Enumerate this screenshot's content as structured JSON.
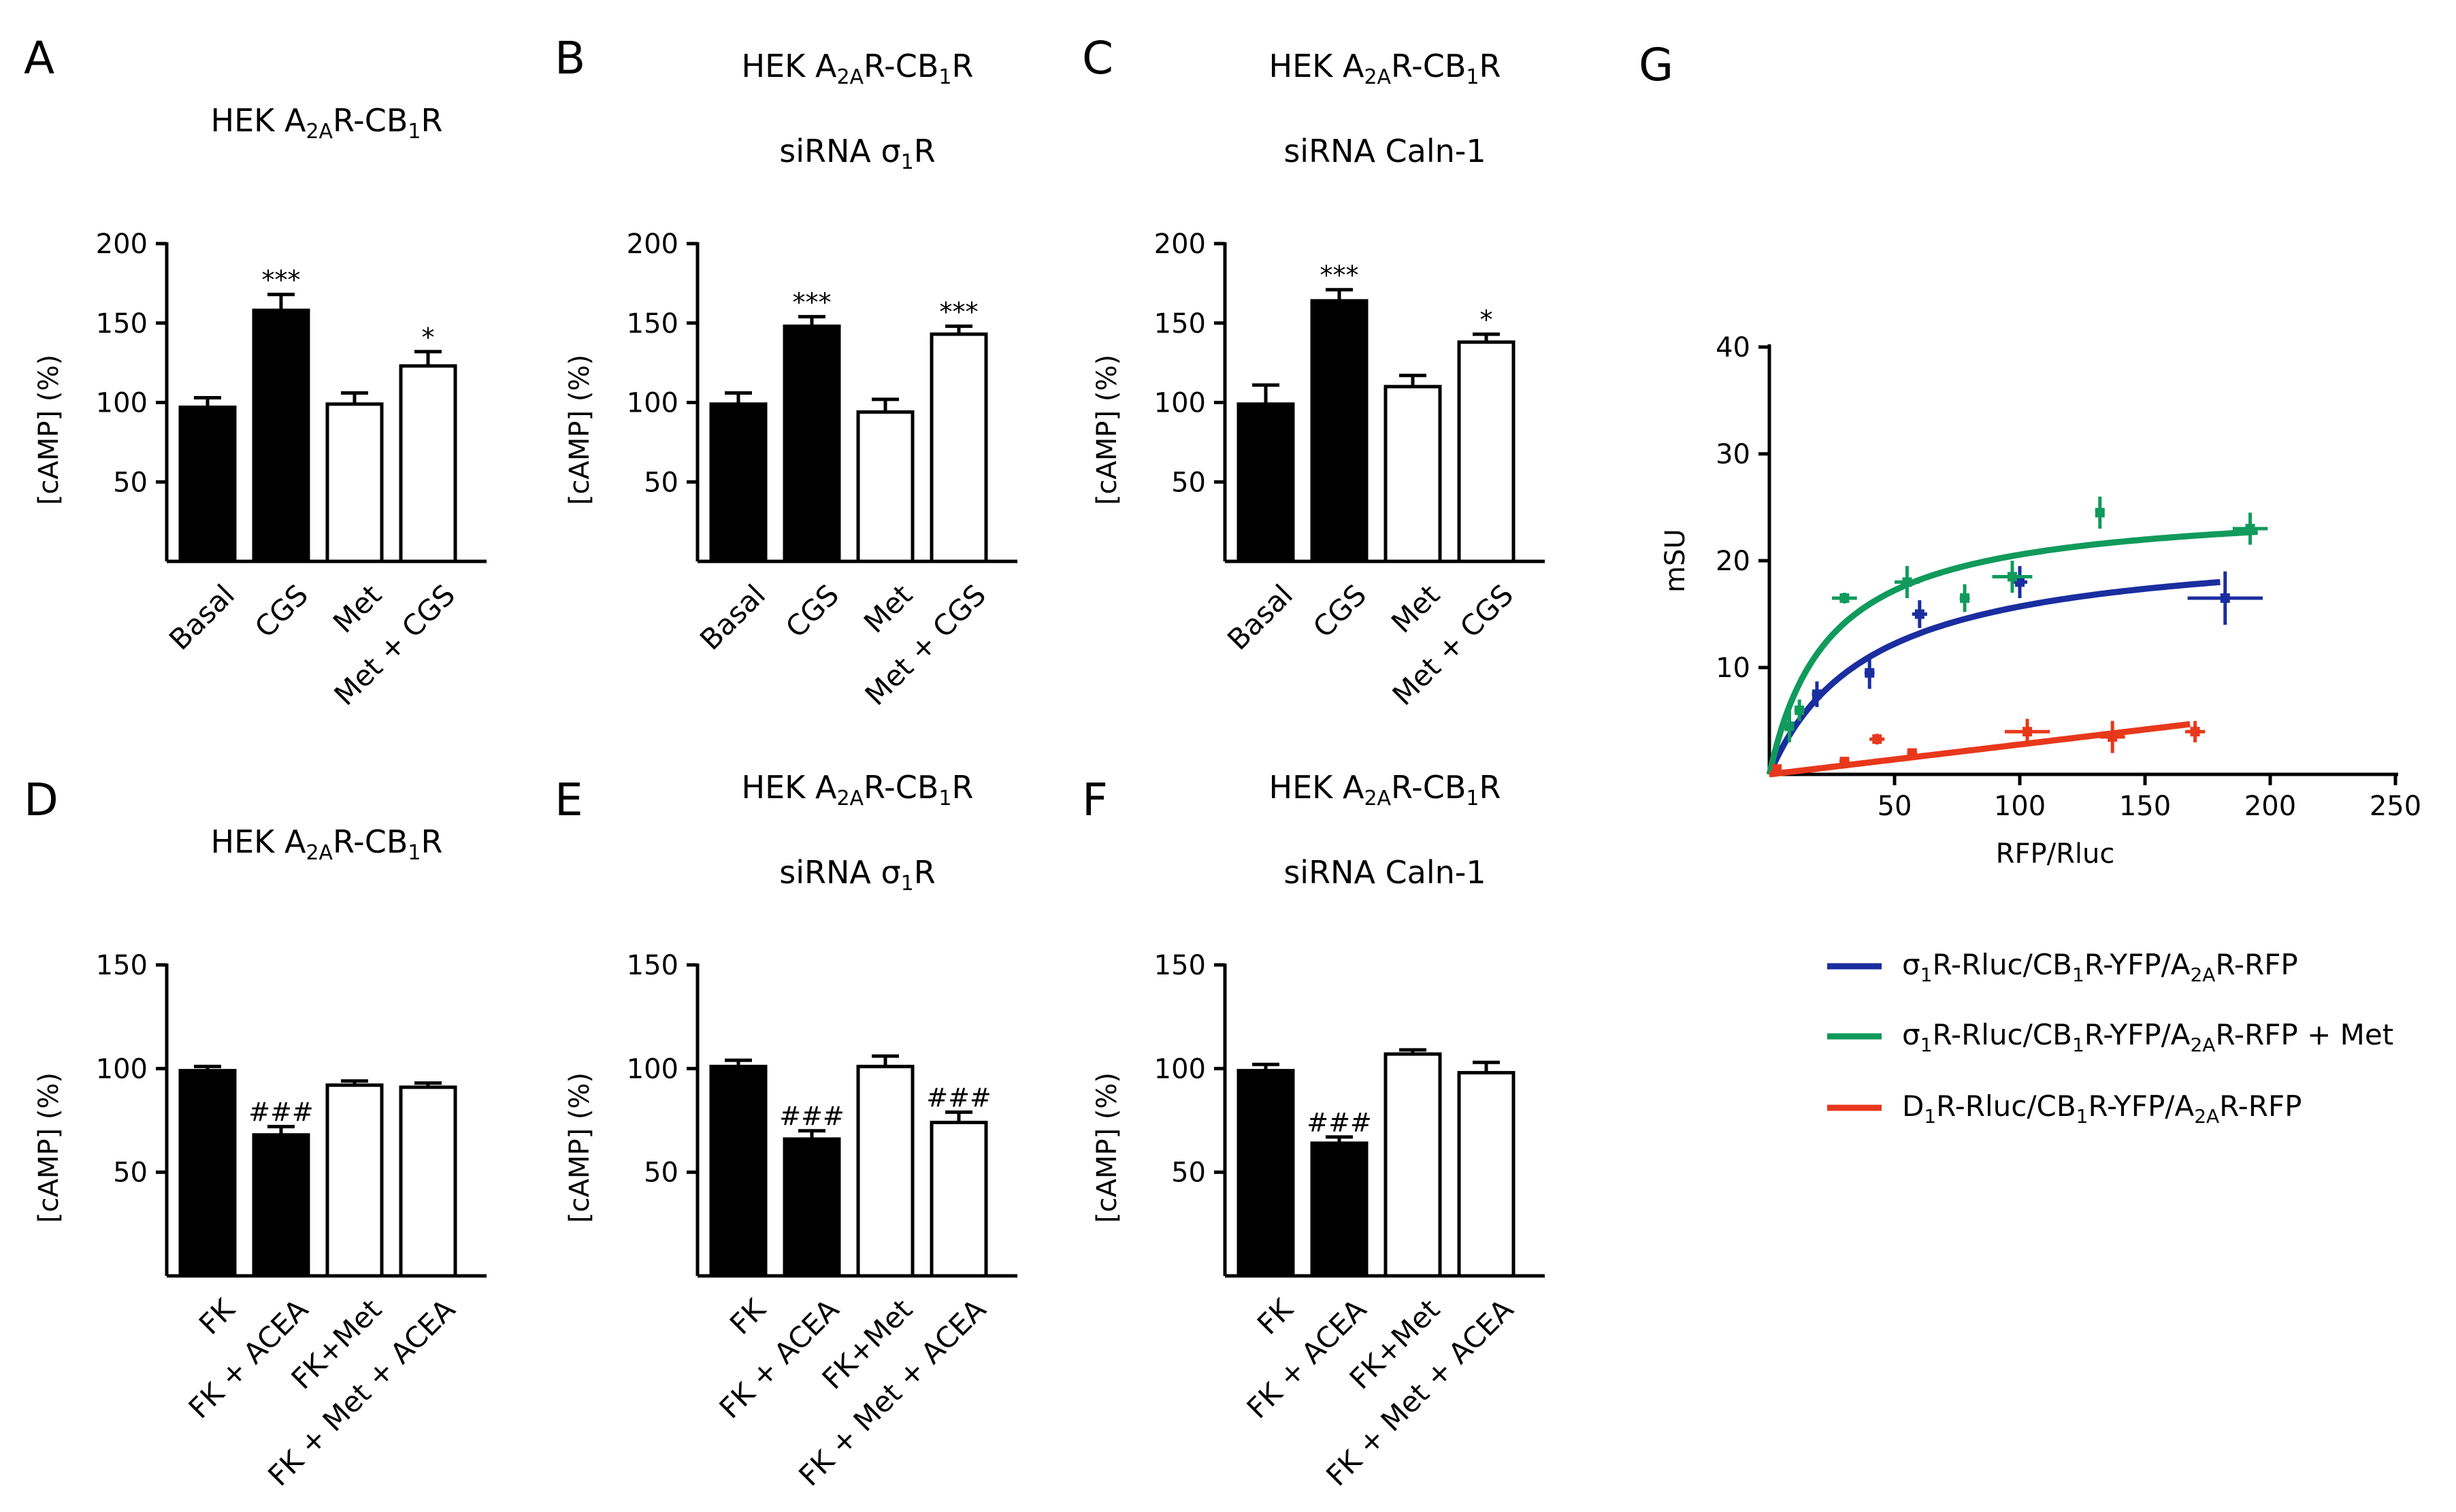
{
  "chart_data": [
    {
      "id": "A",
      "type": "bar",
      "panel_label": "A",
      "title_parts": [
        "HEK A",
        "2A",
        "R-CB",
        "1",
        "R"
      ],
      "ylabel": "[cAMP] (%)",
      "ylim": [
        0,
        200
      ],
      "yticks": [
        "50",
        "100",
        "150",
        "200"
      ],
      "categories": [
        "Basal",
        "CGS",
        "Met",
        "Met + CGS"
      ],
      "values": [
        97,
        158,
        99,
        123
      ],
      "errors": [
        6,
        10,
        7,
        9
      ],
      "fills": [
        "black",
        "black",
        "white",
        "white"
      ],
      "significance": [
        "",
        "***",
        "",
        "*"
      ]
    },
    {
      "id": "B",
      "type": "bar",
      "panel_label": "B",
      "title_parts": [
        "HEK A",
        "2A",
        "R-CB",
        "1",
        "R"
      ],
      "subtitle_parts": [
        "siRNA σ",
        "1",
        "R"
      ],
      "ylabel": "[cAMP] (%)",
      "ylim": [
        0,
        200
      ],
      "yticks": [
        "50",
        "100",
        "150",
        "200"
      ],
      "categories": [
        "Basal",
        "CGS",
        "Met",
        "Met + CGS"
      ],
      "values": [
        99,
        148,
        94,
        143
      ],
      "errors": [
        7,
        6,
        8,
        5
      ],
      "fills": [
        "black",
        "black",
        "white",
        "white"
      ],
      "significance": [
        "",
        "***",
        "",
        "***"
      ]
    },
    {
      "id": "C",
      "type": "bar",
      "panel_label": "C",
      "title_parts": [
        "HEK A",
        "2A",
        "R-CB",
        "1",
        "R"
      ],
      "subtitle_parts": [
        "siRNA Caln-1"
      ],
      "ylabel": "[cAMP] (%)",
      "ylim": [
        0,
        200
      ],
      "yticks": [
        "50",
        "100",
        "150",
        "200"
      ],
      "categories": [
        "Basal",
        "CGS",
        "Met",
        "Met + CGS"
      ],
      "values": [
        99,
        164,
        110,
        138
      ],
      "errors": [
        12,
        7,
        7,
        5
      ],
      "fills": [
        "black",
        "black",
        "white",
        "white"
      ],
      "significance": [
        "",
        "***",
        "",
        "*"
      ]
    },
    {
      "id": "D",
      "type": "bar",
      "panel_label": "D",
      "title_parts": [
        "HEK A",
        "2A",
        "R-CB",
        "1",
        "R"
      ],
      "ylabel": "[cAMP] (%)",
      "ylim": [
        0,
        150
      ],
      "yticks": [
        "50",
        "100",
        "150"
      ],
      "categories": [
        "FK",
        "FK + ACEA",
        "FK+Met",
        "FK + Met + ACEA"
      ],
      "values": [
        99,
        68,
        92,
        91
      ],
      "errors": [
        2,
        4,
        2,
        2
      ],
      "fills": [
        "black",
        "black",
        "white",
        "white"
      ],
      "significance": [
        "",
        "###",
        "",
        ""
      ]
    },
    {
      "id": "E",
      "type": "bar",
      "panel_label": "E",
      "title_parts": [
        "HEK A",
        "2A",
        "R-CB",
        "1",
        "R"
      ],
      "subtitle_parts": [
        "siRNA σ",
        "1",
        "R"
      ],
      "ylabel": "[cAMP] (%)",
      "ylim": [
        0,
        150
      ],
      "yticks": [
        "50",
        "100",
        "150"
      ],
      "categories": [
        "FK",
        "FK + ACEA",
        "FK+Met",
        "FK + Met + ACEA"
      ],
      "values": [
        101,
        66,
        101,
        74
      ],
      "errors": [
        3,
        4,
        5,
        5
      ],
      "fills": [
        "black",
        "black",
        "white",
        "white"
      ],
      "significance": [
        "",
        "###",
        "",
        "###"
      ]
    },
    {
      "id": "F",
      "type": "bar",
      "panel_label": "F",
      "title_parts": [
        "HEK A",
        "2A",
        "R-CB",
        "1",
        "R"
      ],
      "subtitle_parts": [
        "siRNA Caln-1"
      ],
      "ylabel": "[cAMP] (%)",
      "ylim": [
        0,
        150
      ],
      "yticks": [
        "50",
        "100",
        "150"
      ],
      "categories": [
        "FK",
        "FK + ACEA",
        "FK+Met",
        "FK + Met + ACEA"
      ],
      "values": [
        99,
        64,
        107,
        98
      ],
      "errors": [
        3,
        3,
        2,
        5
      ],
      "fills": [
        "black",
        "black",
        "white",
        "white"
      ],
      "significance": [
        "",
        "###",
        "",
        ""
      ]
    },
    {
      "id": "G",
      "type": "scatter",
      "panel_label": "G",
      "xlabel": "RFP/Rluc",
      "ylabel": "mSU",
      "xlim": [
        0,
        250
      ],
      "ylim": [
        0,
        40
      ],
      "xticks": [
        "50",
        "100",
        "150",
        "200",
        "250"
      ],
      "yticks": [
        "10",
        "20",
        "30",
        "40"
      ],
      "series": [
        {
          "name": "σ1R-Rluc/CB1R-YFP/A2AR-RFP",
          "legend_parts": [
            "σ",
            "1",
            "R-Rluc/CB",
            "1",
            "R-YFP/A",
            "2A",
            "R-RFP"
          ],
          "color": "#1a2ea0",
          "fit": {
            "model": "hyperbolic",
            "bmax": 22,
            "kd": 40,
            "x_end": 180
          },
          "points": [
            {
              "x": 8,
              "y": 4.5,
              "xerr": 1.5,
              "yerr": 1
            },
            {
              "x": 19,
              "y": 7.5,
              "xerr": 2,
              "yerr": 1.2
            },
            {
              "x": 40,
              "y": 9.5,
              "xerr": 2,
              "yerr": 1.5
            },
            {
              "x": 60,
              "y": 15,
              "xerr": 3,
              "yerr": 1.3
            },
            {
              "x": 100,
              "y": 18,
              "xerr": 3,
              "yerr": 1.5
            },
            {
              "x": 182,
              "y": 16.5,
              "xerr": 15,
              "yerr": 2.5
            }
          ]
        },
        {
          "name": "σ1R-Rluc/CB1R-YFP/A2AR-RFP + Met",
          "legend_parts": [
            "σ",
            "1",
            "R-Rluc/CB",
            "1",
            "R-YFP/A",
            "2A",
            "R-RFP + Met"
          ],
          "color": "#109a5c",
          "fit": {
            "model": "hyperbolic",
            "bmax": 25.5,
            "kd": 24,
            "x_end": 195
          },
          "points": [
            {
              "x": 8,
              "y": 4.5,
              "xerr": 1.5,
              "yerr": 1.5
            },
            {
              "x": 12,
              "y": 6,
              "xerr": 2,
              "yerr": 1
            },
            {
              "x": 30,
              "y": 16.5,
              "xerr": 5,
              "yerr": 0.5
            },
            {
              "x": 55,
              "y": 18,
              "xerr": 5,
              "yerr": 1.5
            },
            {
              "x": 78,
              "y": 16.5,
              "xerr": 2,
              "yerr": 1.3
            },
            {
              "x": 97,
              "y": 18.5,
              "xerr": 8,
              "yerr": 1.5
            },
            {
              "x": 132,
              "y": 24.5,
              "xerr": 1.5,
              "yerr": 1.5
            },
            {
              "x": 192,
              "y": 23,
              "xerr": 7,
              "yerr": 1.5
            }
          ]
        },
        {
          "name": "D1R-Rluc/CB1R-YFP/A2AR-RFP",
          "legend_parts": [
            "D",
            "1",
            "R-Rluc/CB",
            "1",
            "R-YFP/A",
            "2A",
            "R-RFP"
          ],
          "color": "#e8381c",
          "fit": {
            "model": "linear",
            "slope": 0.028,
            "x_end": 168
          },
          "points": [
            {
              "x": 3,
              "y": 0.5,
              "xerr": 1.5,
              "yerr": 0.3
            },
            {
              "x": 30,
              "y": 1.2,
              "xerr": 2,
              "yerr": 0.3
            },
            {
              "x": 43,
              "y": 3.3,
              "xerr": 3,
              "yerr": 0.5
            },
            {
              "x": 57,
              "y": 2,
              "xerr": 2,
              "yerr": 0.4
            },
            {
              "x": 103,
              "y": 4,
              "xerr": 9,
              "yerr": 1.2
            },
            {
              "x": 137,
              "y": 3.5,
              "xerr": 5,
              "yerr": 1.5
            },
            {
              "x": 170,
              "y": 4,
              "xerr": 4,
              "yerr": 1
            }
          ]
        }
      ]
    }
  ]
}
